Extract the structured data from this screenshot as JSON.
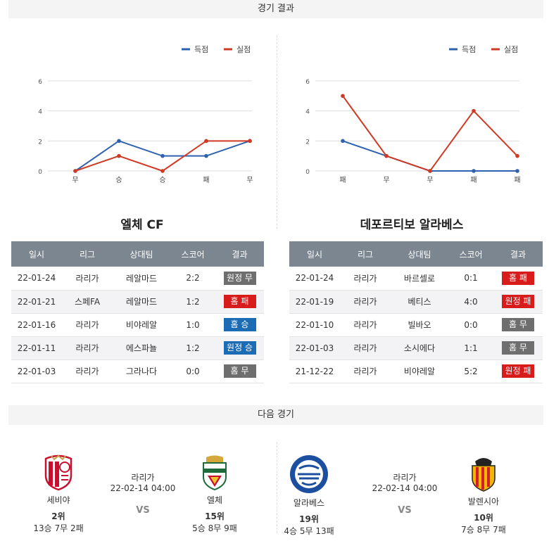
{
  "sections": {
    "results_title": "경기 결과",
    "next_title": "다음 경기"
  },
  "legend": {
    "scored": "득점",
    "conceded": "실점"
  },
  "colors": {
    "scored": "#2f62ae",
    "conceded": "#cf3a24",
    "grid": "#dddddd"
  },
  "left": {
    "team_name": "엘체 CF",
    "chart_data": {
      "type": "line",
      "categories": [
        "무",
        "승",
        "승",
        "패",
        "무"
      ],
      "series": [
        {
          "name": "득점",
          "values": [
            0,
            2,
            1,
            1,
            2
          ]
        },
        {
          "name": "실점",
          "values": [
            0,
            1,
            0,
            2,
            2
          ]
        }
      ],
      "ylim": [
        0,
        6
      ],
      "yticks": [
        "6",
        "4",
        "2",
        "0"
      ],
      "legend_position": "top-right",
      "grid": true
    },
    "table": {
      "headers": [
        "일시",
        "리그",
        "상대팀",
        "스코어",
        "결과"
      ],
      "rows": [
        {
          "date": "22-01-24",
          "league": "라리가",
          "opponent": "레알마드",
          "score": "2:2",
          "result": "원정 무",
          "type": "gray"
        },
        {
          "date": "22-01-21",
          "league": "스페FA",
          "opponent": "레알마드",
          "score": "1:2",
          "result": "홈 패",
          "type": "red"
        },
        {
          "date": "22-01-16",
          "league": "라리가",
          "opponent": "비야레알",
          "score": "1:0",
          "result": "홈 승",
          "type": "blue"
        },
        {
          "date": "22-01-11",
          "league": "라리가",
          "opponent": "에스파뇰",
          "score": "1:2",
          "result": "원정 승",
          "type": "blue"
        },
        {
          "date": "22-01-03",
          "league": "라리가",
          "opponent": "그라나다",
          "score": "0:0",
          "result": "홈 무",
          "type": "gray"
        }
      ]
    }
  },
  "right": {
    "team_name": "데포르티보 알라베스",
    "chart_data": {
      "type": "line",
      "categories": [
        "패",
        "무",
        "무",
        "패",
        "패"
      ],
      "series": [
        {
          "name": "득점",
          "values": [
            2,
            1,
            0,
            0,
            0
          ]
        },
        {
          "name": "실점",
          "values": [
            5,
            1,
            0,
            4,
            1
          ]
        }
      ],
      "ylim": [
        0,
        6
      ],
      "yticks": [
        "6",
        "4",
        "2",
        "0"
      ],
      "legend_position": "top-right",
      "grid": true
    },
    "table": {
      "headers": [
        "일시",
        "리그",
        "상대팀",
        "스코어",
        "결과"
      ],
      "rows": [
        {
          "date": "22-01-24",
          "league": "라리가",
          "opponent": "바르셀로",
          "score": "0:1",
          "result": "홈 패",
          "type": "red"
        },
        {
          "date": "22-01-19",
          "league": "라리가",
          "opponent": "베티스",
          "score": "4:0",
          "result": "원정 패",
          "type": "red"
        },
        {
          "date": "22-01-10",
          "league": "라리가",
          "opponent": "빌바오",
          "score": "0:0",
          "result": "홈 무",
          "type": "gray"
        },
        {
          "date": "22-01-03",
          "league": "라리가",
          "opponent": "소시에다",
          "score": "1:1",
          "result": "홈 무",
          "type": "gray"
        },
        {
          "date": "21-12-22",
          "league": "라리가",
          "opponent": "비야레알",
          "score": "5:2",
          "result": "원정 패",
          "type": "red"
        }
      ]
    }
  },
  "next_matches": [
    {
      "home": {
        "name": "세비야",
        "rank": "2위",
        "record": "13승 7무 2패",
        "crest": "sevilla-crest-icon"
      },
      "league": "라리가",
      "datetime": "22-02-14 04:00",
      "vs": "VS",
      "away": {
        "name": "엘체",
        "rank": "15위",
        "record": "5승 8무 9패",
        "crest": "elche-crest-icon"
      }
    },
    {
      "home": {
        "name": "알라베스",
        "rank": "19위",
        "record": "4승 5무 13패",
        "crest": "alaves-crest-icon"
      },
      "league": "라리가",
      "datetime": "22-02-14 04:00",
      "vs": "VS",
      "away": {
        "name": "발렌시아",
        "rank": "10위",
        "record": "7승 8무 7패",
        "crest": "valencia-crest-icon"
      }
    }
  ]
}
